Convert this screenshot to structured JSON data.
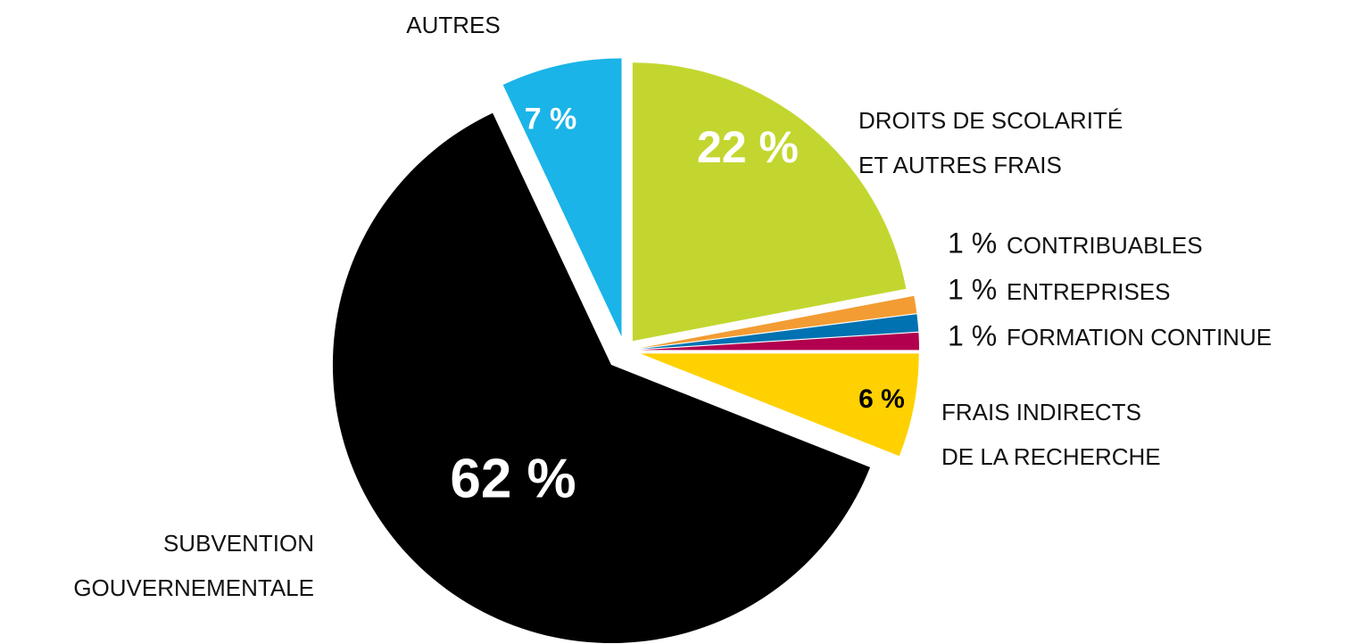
{
  "chart_data": {
    "type": "pie",
    "categories": [
      "DROITS DE SCOLARITÉ\nET AUTRES FRAIS",
      "CONTRIBUABLES",
      "ENTREPRISES",
      "FORMATION CONTINUE",
      "FRAIS INDIRECTS\nDE LA RECHERCHE",
      "SUBVENTION\nGOUVERNEMENTALE",
      "AUTRES"
    ],
    "values": [
      22,
      1,
      1,
      1,
      6,
      62,
      7
    ],
    "value_labels": [
      "22 %",
      "1 %",
      "1 %",
      "1 %",
      "6 %",
      "62 %",
      "7 %"
    ],
    "colors": [
      "#c3d62f",
      "#f39c33",
      "#0072b1",
      "#b2004e",
      "#ffd100",
      "#000000",
      "#1ab4e8"
    ]
  }
}
